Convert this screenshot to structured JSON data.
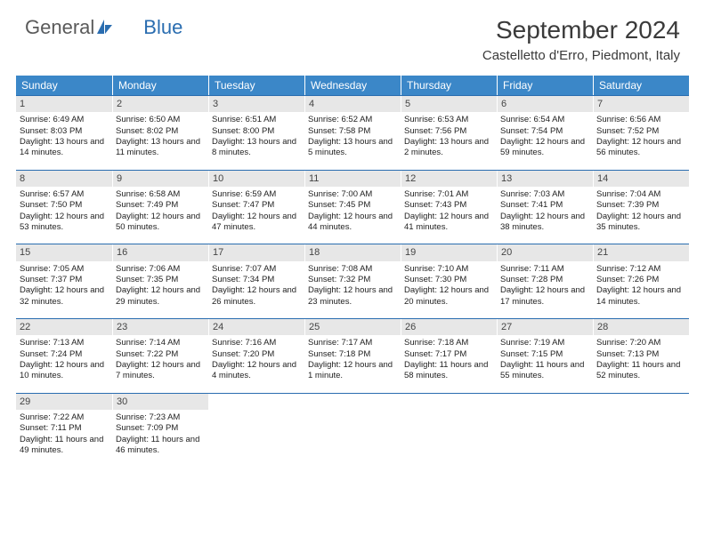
{
  "logo": {
    "text1": "General",
    "text2": "Blue"
  },
  "title": "September 2024",
  "location": "Castelletto d'Erro, Piedmont, Italy",
  "colors": {
    "header_bg": "#3b87c8",
    "header_text": "#ffffff",
    "daynum_bg": "#e7e7e7",
    "week_border": "#2a6db0",
    "logo_gray": "#5a5a5a",
    "logo_blue": "#2a6db0",
    "title_color": "#3a3a3a",
    "body_text": "#222222",
    "page_bg": "#ffffff"
  },
  "typography": {
    "month_title_fontsize_pt": 21,
    "location_fontsize_pt": 11,
    "dayheader_fontsize_pt": 9,
    "daynum_fontsize_pt": 8,
    "cell_fontsize_pt": 7
  },
  "layout": {
    "type": "calendar-grid",
    "columns": 7,
    "rows": 5
  },
  "day_names": [
    "Sunday",
    "Monday",
    "Tuesday",
    "Wednesday",
    "Thursday",
    "Friday",
    "Saturday"
  ],
  "weeks": [
    [
      {
        "num": "1",
        "sunrise": "Sunrise: 6:49 AM",
        "sunset": "Sunset: 8:03 PM",
        "daylight": "Daylight: 13 hours and 14 minutes."
      },
      {
        "num": "2",
        "sunrise": "Sunrise: 6:50 AM",
        "sunset": "Sunset: 8:02 PM",
        "daylight": "Daylight: 13 hours and 11 minutes."
      },
      {
        "num": "3",
        "sunrise": "Sunrise: 6:51 AM",
        "sunset": "Sunset: 8:00 PM",
        "daylight": "Daylight: 13 hours and 8 minutes."
      },
      {
        "num": "4",
        "sunrise": "Sunrise: 6:52 AM",
        "sunset": "Sunset: 7:58 PM",
        "daylight": "Daylight: 13 hours and 5 minutes."
      },
      {
        "num": "5",
        "sunrise": "Sunrise: 6:53 AM",
        "sunset": "Sunset: 7:56 PM",
        "daylight": "Daylight: 13 hours and 2 minutes."
      },
      {
        "num": "6",
        "sunrise": "Sunrise: 6:54 AM",
        "sunset": "Sunset: 7:54 PM",
        "daylight": "Daylight: 12 hours and 59 minutes."
      },
      {
        "num": "7",
        "sunrise": "Sunrise: 6:56 AM",
        "sunset": "Sunset: 7:52 PM",
        "daylight": "Daylight: 12 hours and 56 minutes."
      }
    ],
    [
      {
        "num": "8",
        "sunrise": "Sunrise: 6:57 AM",
        "sunset": "Sunset: 7:50 PM",
        "daylight": "Daylight: 12 hours and 53 minutes."
      },
      {
        "num": "9",
        "sunrise": "Sunrise: 6:58 AM",
        "sunset": "Sunset: 7:49 PM",
        "daylight": "Daylight: 12 hours and 50 minutes."
      },
      {
        "num": "10",
        "sunrise": "Sunrise: 6:59 AM",
        "sunset": "Sunset: 7:47 PM",
        "daylight": "Daylight: 12 hours and 47 minutes."
      },
      {
        "num": "11",
        "sunrise": "Sunrise: 7:00 AM",
        "sunset": "Sunset: 7:45 PM",
        "daylight": "Daylight: 12 hours and 44 minutes."
      },
      {
        "num": "12",
        "sunrise": "Sunrise: 7:01 AM",
        "sunset": "Sunset: 7:43 PM",
        "daylight": "Daylight: 12 hours and 41 minutes."
      },
      {
        "num": "13",
        "sunrise": "Sunrise: 7:03 AM",
        "sunset": "Sunset: 7:41 PM",
        "daylight": "Daylight: 12 hours and 38 minutes."
      },
      {
        "num": "14",
        "sunrise": "Sunrise: 7:04 AM",
        "sunset": "Sunset: 7:39 PM",
        "daylight": "Daylight: 12 hours and 35 minutes."
      }
    ],
    [
      {
        "num": "15",
        "sunrise": "Sunrise: 7:05 AM",
        "sunset": "Sunset: 7:37 PM",
        "daylight": "Daylight: 12 hours and 32 minutes."
      },
      {
        "num": "16",
        "sunrise": "Sunrise: 7:06 AM",
        "sunset": "Sunset: 7:35 PM",
        "daylight": "Daylight: 12 hours and 29 minutes."
      },
      {
        "num": "17",
        "sunrise": "Sunrise: 7:07 AM",
        "sunset": "Sunset: 7:34 PM",
        "daylight": "Daylight: 12 hours and 26 minutes."
      },
      {
        "num": "18",
        "sunrise": "Sunrise: 7:08 AM",
        "sunset": "Sunset: 7:32 PM",
        "daylight": "Daylight: 12 hours and 23 minutes."
      },
      {
        "num": "19",
        "sunrise": "Sunrise: 7:10 AM",
        "sunset": "Sunset: 7:30 PM",
        "daylight": "Daylight: 12 hours and 20 minutes."
      },
      {
        "num": "20",
        "sunrise": "Sunrise: 7:11 AM",
        "sunset": "Sunset: 7:28 PM",
        "daylight": "Daylight: 12 hours and 17 minutes."
      },
      {
        "num": "21",
        "sunrise": "Sunrise: 7:12 AM",
        "sunset": "Sunset: 7:26 PM",
        "daylight": "Daylight: 12 hours and 14 minutes."
      }
    ],
    [
      {
        "num": "22",
        "sunrise": "Sunrise: 7:13 AM",
        "sunset": "Sunset: 7:24 PM",
        "daylight": "Daylight: 12 hours and 10 minutes."
      },
      {
        "num": "23",
        "sunrise": "Sunrise: 7:14 AM",
        "sunset": "Sunset: 7:22 PM",
        "daylight": "Daylight: 12 hours and 7 minutes."
      },
      {
        "num": "24",
        "sunrise": "Sunrise: 7:16 AM",
        "sunset": "Sunset: 7:20 PM",
        "daylight": "Daylight: 12 hours and 4 minutes."
      },
      {
        "num": "25",
        "sunrise": "Sunrise: 7:17 AM",
        "sunset": "Sunset: 7:18 PM",
        "daylight": "Daylight: 12 hours and 1 minute."
      },
      {
        "num": "26",
        "sunrise": "Sunrise: 7:18 AM",
        "sunset": "Sunset: 7:17 PM",
        "daylight": "Daylight: 11 hours and 58 minutes."
      },
      {
        "num": "27",
        "sunrise": "Sunrise: 7:19 AM",
        "sunset": "Sunset: 7:15 PM",
        "daylight": "Daylight: 11 hours and 55 minutes."
      },
      {
        "num": "28",
        "sunrise": "Sunrise: 7:20 AM",
        "sunset": "Sunset: 7:13 PM",
        "daylight": "Daylight: 11 hours and 52 minutes."
      }
    ],
    [
      {
        "num": "29",
        "sunrise": "Sunrise: 7:22 AM",
        "sunset": "Sunset: 7:11 PM",
        "daylight": "Daylight: 11 hours and 49 minutes."
      },
      {
        "num": "30",
        "sunrise": "Sunrise: 7:23 AM",
        "sunset": "Sunset: 7:09 PM",
        "daylight": "Daylight: 11 hours and 46 minutes."
      },
      null,
      null,
      null,
      null,
      null
    ]
  ]
}
